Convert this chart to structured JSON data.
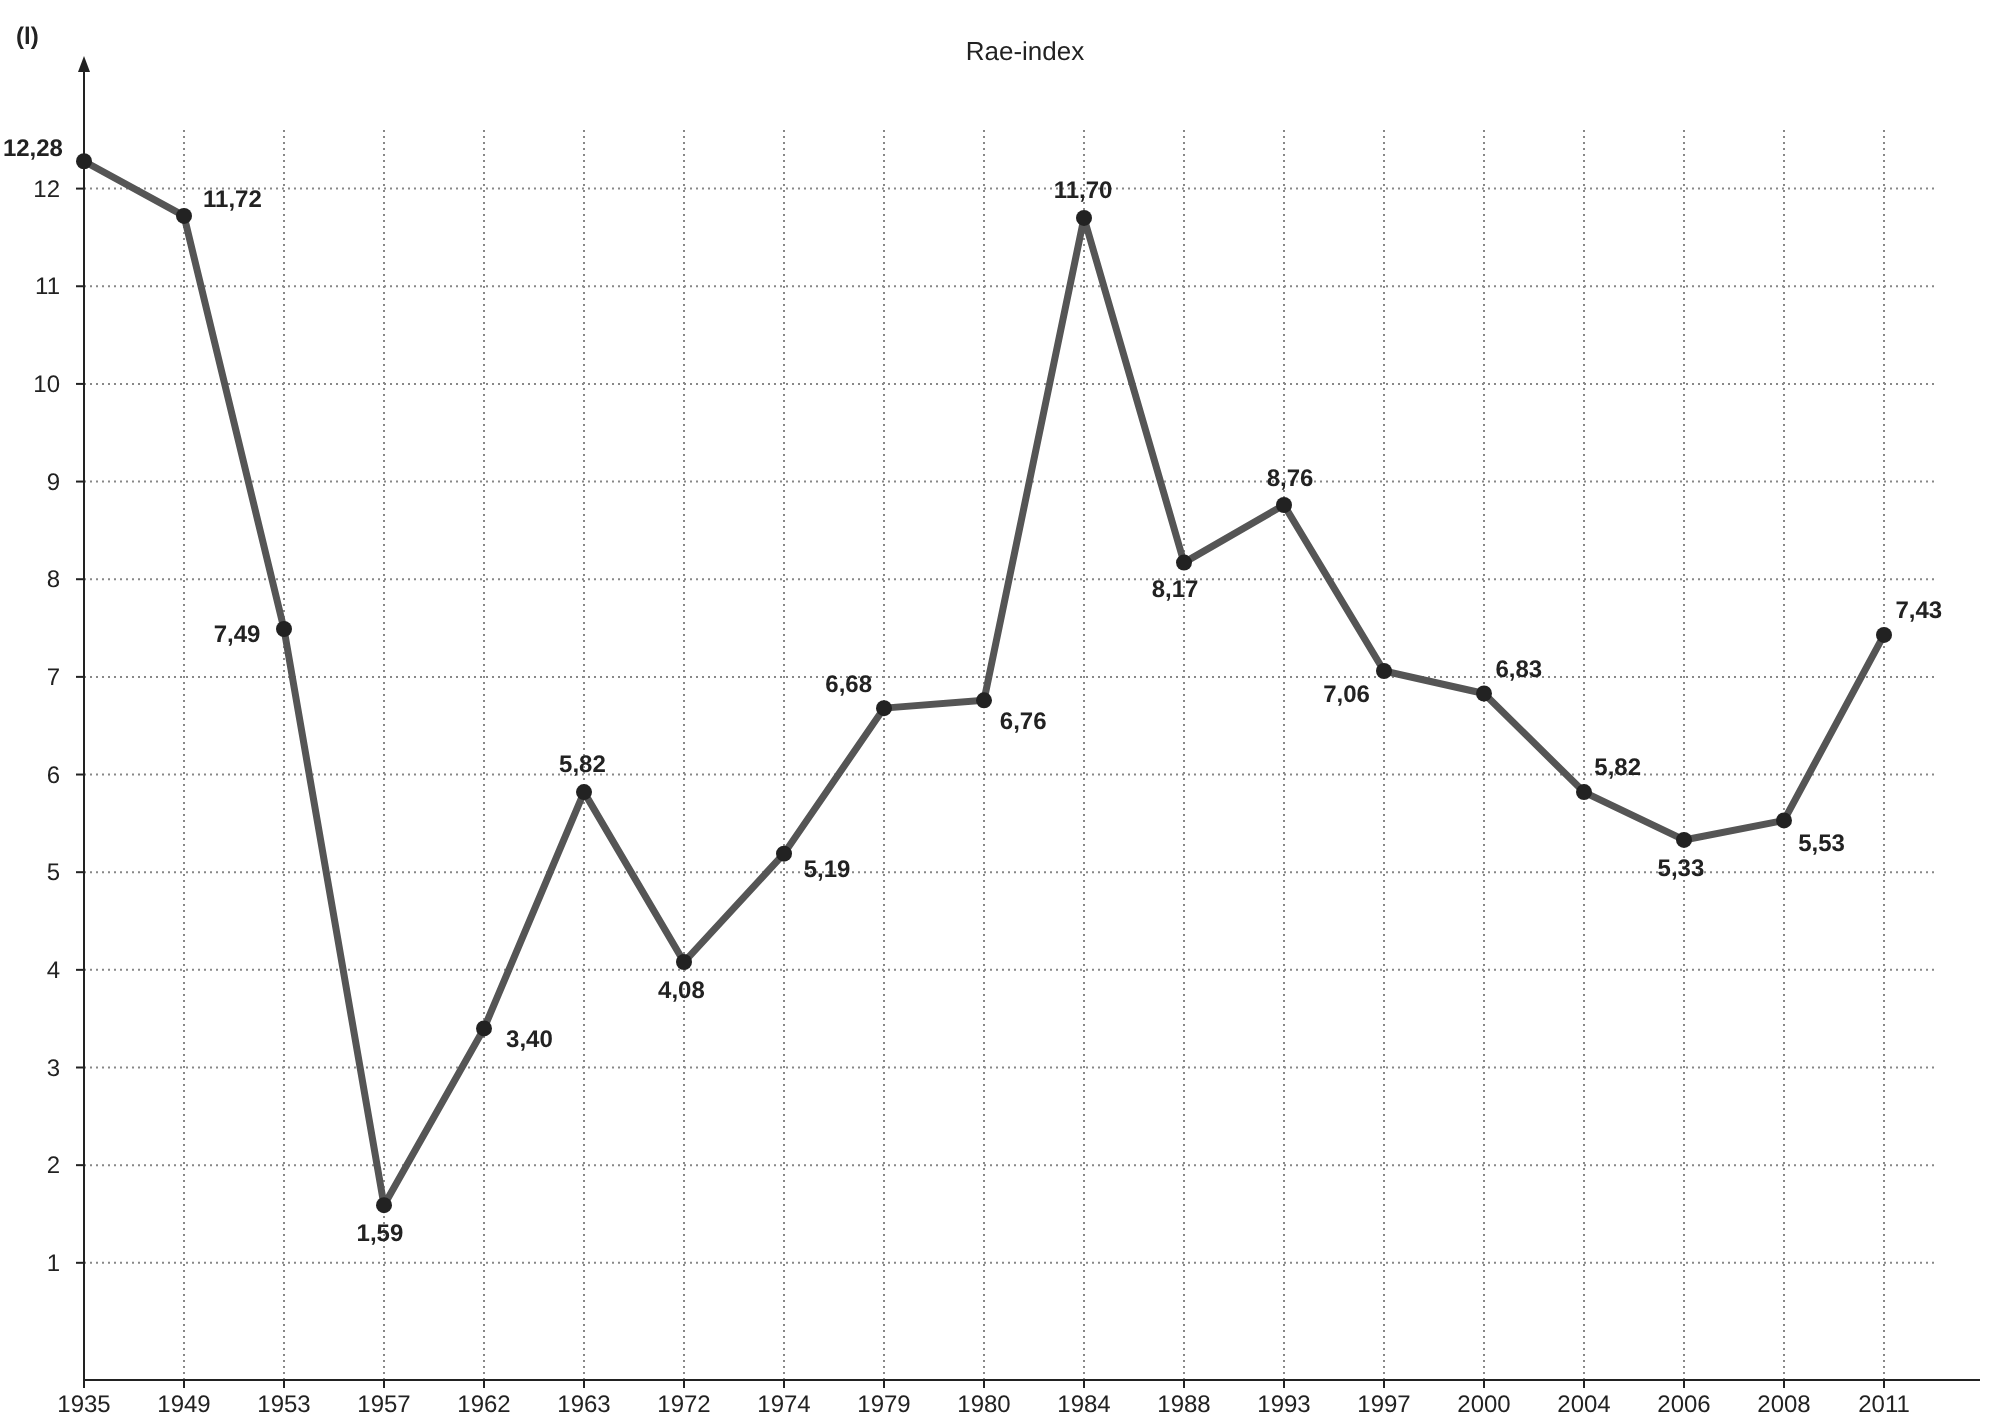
{
  "chart_data": {
    "type": "line",
    "title": "Rae-index",
    "ylabel": "(l)",
    "categories": [
      "1935",
      "1949",
      "1953",
      "1957",
      "1962",
      "1963",
      "1972",
      "1974",
      "1979",
      "1980",
      "1984",
      "1988",
      "1993",
      "1997",
      "2000",
      "2004",
      "2006",
      "2008",
      "2011"
    ],
    "series": [
      {
        "color": "#555555",
        "values": [
          12.28,
          11.72,
          7.49,
          1.59,
          3.4,
          5.82,
          4.08,
          5.19,
          6.68,
          6.76,
          11.7,
          8.17,
          8.76,
          7.06,
          6.83,
          5.82,
          5.33,
          5.53,
          7.43
        ],
        "value_labels": [
          "12,28",
          "11,72",
          "7,49",
          "1,59",
          "3,40",
          "5,82",
          "4,08",
          "5,19",
          "6,68",
          "6,76",
          "11,70",
          "8,17",
          "8,76",
          "7,06",
          "6,83",
          "5,82",
          "5,33",
          "5,53",
          "7,43"
        ]
      }
    ],
    "ylim": [
      -0.2,
      12.6
    ],
    "yticks": [
      1,
      2,
      3,
      4,
      5,
      6,
      7,
      8,
      9,
      10,
      11,
      12
    ],
    "grid": true,
    "marker": "circle",
    "line_style": "solid"
  }
}
